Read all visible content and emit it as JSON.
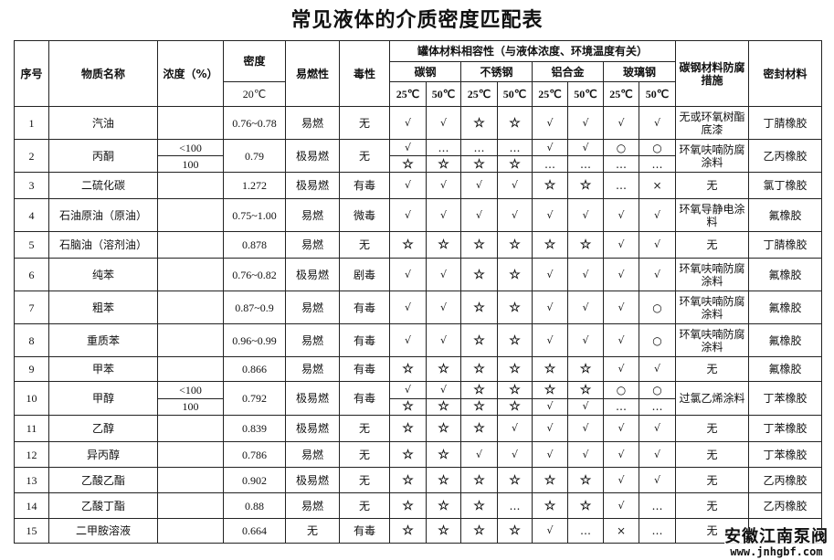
{
  "title": "常见液体的介质密度匹配表",
  "headers": {
    "index": "序号",
    "name": "物质名称",
    "concentration": "浓度（%）",
    "density": "密度",
    "density_temp": "20℃",
    "flammability": "易燃性",
    "toxicity": "毒性",
    "compat": "罐体材料相容性（与液体浓度、环境温度有关）",
    "materials": [
      "碳钢",
      "不锈钢",
      "铝合金",
      "玻璃钢"
    ],
    "temps": [
      "25℃",
      "50℃"
    ],
    "corrosion": "碳钢材料防腐措施",
    "seal": "密封材料"
  },
  "rows": [
    {
      "no": "1",
      "name": "汽油",
      "density": "0.76~0.78",
      "flam": "易燃",
      "tox": "无",
      "sub": [
        {
          "conc": "",
          "compat": [
            "√",
            "√",
            "☆",
            "☆",
            "√",
            "√",
            "√",
            "√"
          ]
        }
      ],
      "corrosion": "无或环氧树酯底漆",
      "seal": "丁腈橡胶"
    },
    {
      "no": "2",
      "name": "丙酮",
      "density": "0.79",
      "flam": "极易燃",
      "tox": "无",
      "sub": [
        {
          "conc": "<100",
          "compat": [
            "√",
            "…",
            "…",
            "…",
            "√",
            "√",
            "○",
            "○"
          ]
        },
        {
          "conc": "100",
          "compat": [
            "☆",
            "☆",
            "☆",
            "☆",
            "…",
            "…",
            "…",
            "…"
          ]
        }
      ],
      "corrosion": "环氧呋喃防腐涂料",
      "seal": "乙丙橡胶"
    },
    {
      "no": "3",
      "name": "二硫化碳",
      "density": "1.272",
      "flam": "极易燃",
      "tox": "有毒",
      "sub": [
        {
          "conc": "",
          "compat": [
            "√",
            "√",
            "√",
            "√",
            "☆",
            "☆",
            "…",
            "×"
          ]
        }
      ],
      "corrosion": "无",
      "seal": "氯丁橡胶"
    },
    {
      "no": "4",
      "name": "石油原油（原油）",
      "density": "0.75~1.00",
      "flam": "易燃",
      "tox": "微毒",
      "sub": [
        {
          "conc": "",
          "compat": [
            "√",
            "√",
            "√",
            "√",
            "√",
            "√",
            "√",
            "√"
          ]
        }
      ],
      "corrosion": "环氧导静电涂料",
      "seal": "氟橡胶"
    },
    {
      "no": "5",
      "name": "石脑油（溶剂油）",
      "density": "0.878",
      "flam": "易燃",
      "tox": "无",
      "sub": [
        {
          "conc": "",
          "compat": [
            "☆",
            "☆",
            "☆",
            "☆",
            "☆",
            "☆",
            "√",
            "√"
          ]
        }
      ],
      "corrosion": "无",
      "seal": "丁腈橡胶"
    },
    {
      "no": "6",
      "name": "纯苯",
      "density": "0.76~0.82",
      "flam": "极易燃",
      "tox": "剧毒",
      "sub": [
        {
          "conc": "",
          "compat": [
            "√",
            "√",
            "☆",
            "☆",
            "√",
            "√",
            "√",
            "√"
          ]
        }
      ],
      "corrosion": "环氧呋喃防腐涂料",
      "seal": "氟橡胶"
    },
    {
      "no": "7",
      "name": "粗苯",
      "density": "0.87~0.9",
      "flam": "易燃",
      "tox": "有毒",
      "sub": [
        {
          "conc": "",
          "compat": [
            "√",
            "√",
            "☆",
            "☆",
            "√",
            "√",
            "√",
            "○"
          ]
        }
      ],
      "corrosion": "环氧呋喃防腐涂料",
      "seal": "氟橡胶"
    },
    {
      "no": "8",
      "name": "重质苯",
      "density": "0.96~0.99",
      "flam": "易燃",
      "tox": "有毒",
      "sub": [
        {
          "conc": "",
          "compat": [
            "√",
            "√",
            "☆",
            "☆",
            "√",
            "√",
            "√",
            "○"
          ]
        }
      ],
      "corrosion": "环氧呋喃防腐涂料",
      "seal": "氟橡胶"
    },
    {
      "no": "9",
      "name": "甲苯",
      "density": "0.866",
      "flam": "易燃",
      "tox": "有毒",
      "sub": [
        {
          "conc": "",
          "compat": [
            "☆",
            "☆",
            "☆",
            "☆",
            "☆",
            "☆",
            "√",
            "√"
          ]
        }
      ],
      "corrosion": "无",
      "seal": "氟橡胶"
    },
    {
      "no": "10",
      "name": "甲醇",
      "density": "0.792",
      "flam": "极易燃",
      "tox": "有毒",
      "sub": [
        {
          "conc": "<100",
          "compat": [
            "√",
            "√",
            "☆",
            "☆",
            "☆",
            "☆",
            "○",
            "○"
          ]
        },
        {
          "conc": "100",
          "compat": [
            "☆",
            "☆",
            "☆",
            "☆",
            "√",
            "√",
            "…",
            "…"
          ]
        }
      ],
      "corrosion": "过氯乙烯涂料",
      "seal": "丁苯橡胶"
    },
    {
      "no": "11",
      "name": "乙醇",
      "density": "0.839",
      "flam": "极易燃",
      "tox": "无",
      "sub": [
        {
          "conc": "",
          "compat": [
            "☆",
            "☆",
            "☆",
            "√",
            "√",
            "√",
            "√",
            "√"
          ]
        }
      ],
      "corrosion": "无",
      "seal": "丁苯橡胶"
    },
    {
      "no": "12",
      "name": "异丙醇",
      "density": "0.786",
      "flam": "易燃",
      "tox": "无",
      "sub": [
        {
          "conc": "",
          "compat": [
            "☆",
            "☆",
            "√",
            "√",
            "√",
            "√",
            "√",
            "√"
          ]
        }
      ],
      "corrosion": "无",
      "seal": "丁苯橡胶"
    },
    {
      "no": "13",
      "name": "乙酸乙酯",
      "density": "0.902",
      "flam": "极易燃",
      "tox": "无",
      "sub": [
        {
          "conc": "",
          "compat": [
            "☆",
            "☆",
            "☆",
            "☆",
            "☆",
            "☆",
            "√",
            "√"
          ]
        }
      ],
      "corrosion": "无",
      "seal": "乙丙橡胶"
    },
    {
      "no": "14",
      "name": "乙酸丁酯",
      "density": "0.88",
      "flam": "易燃",
      "tox": "无",
      "sub": [
        {
          "conc": "",
          "compat": [
            "☆",
            "☆",
            "☆",
            "…",
            "☆",
            "☆",
            "√",
            "…"
          ]
        }
      ],
      "corrosion": "无",
      "seal": "乙丙橡胶"
    },
    {
      "no": "15",
      "name": "二甲胺溶液",
      "density": "0.664",
      "flam": "无",
      "tox": "有毒",
      "sub": [
        {
          "conc": "",
          "compat": [
            "☆",
            "☆",
            "☆",
            "☆",
            "√",
            "…",
            "×",
            "…"
          ]
        }
      ],
      "corrosion": "无",
      "seal": ""
    }
  ],
  "watermark": {
    "name": "安徽江南泵阀",
    "url": "www.jnhgbf.com"
  }
}
